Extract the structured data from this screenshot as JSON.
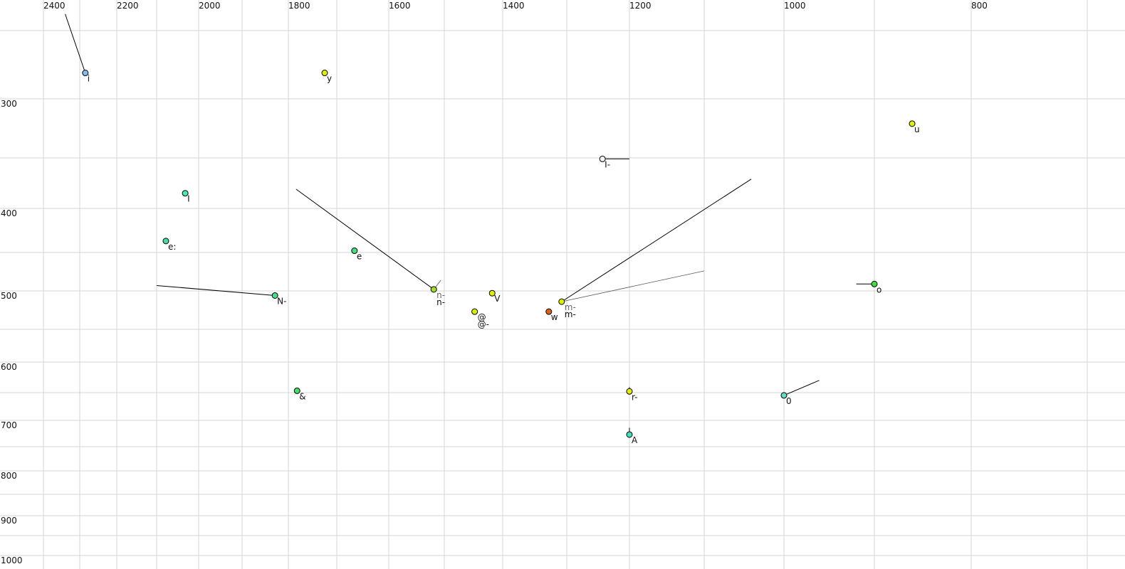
{
  "chart_data": {
    "type": "scatter",
    "title": "",
    "xlabel": "",
    "ylabel": "",
    "x_axis": {
      "reversed": true,
      "scale": "bark-like nonlinear",
      "xlim": [
        2500,
        700
      ],
      "tick_labels": [
        2400,
        2200,
        2000,
        1800,
        1600,
        1400,
        1200,
        1000,
        800
      ],
      "gridlines": [
        2400,
        2300,
        2200,
        2100,
        2000,
        1900,
        1800,
        1700,
        1600,
        1500,
        1400,
        1300,
        1200,
        1100,
        1000,
        900,
        800,
        700
      ],
      "label_position": "top"
    },
    "y_axis": {
      "reversed": false,
      "scale": "nonlinear",
      "ylim": [
        220,
        1000
      ],
      "tick_labels": [
        300,
        400,
        500,
        600,
        700,
        800,
        900,
        1000
      ],
      "gridlines": [
        250,
        300,
        350,
        400,
        450,
        500,
        550,
        600,
        650,
        700,
        750,
        800,
        850,
        900,
        950,
        1000
      ],
      "label_position": "left"
    },
    "grid": true,
    "points": [
      {
        "label": "i",
        "x": 2285,
        "y": 281,
        "color": "#8ab8f0",
        "trail": [
          [
            2340,
            239
          ]
        ]
      },
      {
        "label": "y",
        "x": 1725,
        "y": 281,
        "color": "#e0f000"
      },
      {
        "label": "u",
        "x": 861,
        "y": 321,
        "color": "#e0f000"
      },
      {
        "label": "I-",
        "x": 1243,
        "y": 351,
        "color": "#f4f4f4",
        "trail": [
          [
            1200,
            351
          ]
        ]
      },
      {
        "label": "I",
        "x": 2032,
        "y": 385,
        "color": "#40f0b0"
      },
      {
        "label": "e:",
        "x": 2078,
        "y": 437,
        "color": "#40e0a0"
      },
      {
        "label": "e",
        "x": 1666,
        "y": 448,
        "color": "#40e080"
      },
      {
        "label": "N-",
        "x": 1829,
        "y": 506,
        "color": "#40e090",
        "trail": [
          [
            2100,
            493
          ]
        ]
      },
      {
        "label": "n-",
        "label2": "n-",
        "x": 1519,
        "y": 498,
        "color": "#a0e020",
        "trail": [
          [
            1784,
            381
          ]
        ],
        "trail2": [
          [
            1506,
            486
          ]
        ]
      },
      {
        "label": "V",
        "x": 1418,
        "y": 503,
        "color": "#e0f000"
      },
      {
        "label": "@",
        "label2": "@-",
        "x": 1448,
        "y": 527,
        "color": "#d8f000"
      },
      {
        "label": "w",
        "x": 1328,
        "y": 527,
        "color": "#e06010"
      },
      {
        "label": "m-",
        "label2": "m-",
        "x": 1308,
        "y": 514,
        "color": "#d8f000",
        "trail": [
          [
            1041,
            371
          ]
        ],
        "trail2": [
          [
            1100,
            474
          ]
        ]
      },
      {
        "label": "o",
        "x": 900,
        "y": 491,
        "color": "#40e040",
        "trail": [
          [
            920,
            491
          ]
        ]
      },
      {
        "label": "&",
        "x": 1782,
        "y": 647,
        "color": "#40e060"
      },
      {
        "label": "r-",
        "x": 1200,
        "y": 648,
        "color": "#e0f000",
        "trail": [
          [
            1200,
            641
          ]
        ]
      },
      {
        "label": "0",
        "x": 1000,
        "y": 655,
        "color": "#60e0c0",
        "trail": [
          [
            961,
            630
          ]
        ]
      },
      {
        "label": "A",
        "x": 1200,
        "y": 727,
        "color": "#40e0c0",
        "trail": [
          [
            1200,
            714
          ]
        ]
      }
    ]
  }
}
